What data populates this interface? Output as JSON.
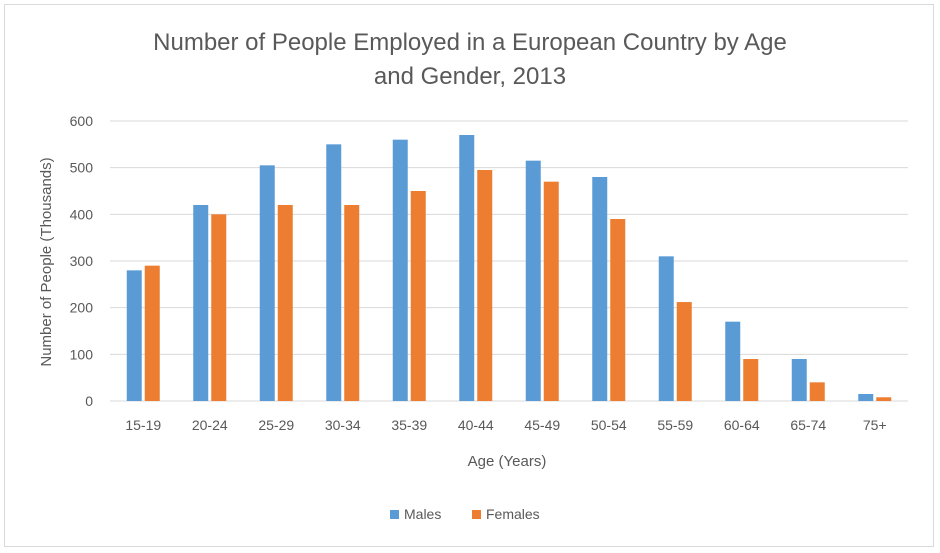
{
  "chart_data": {
    "type": "bar",
    "title_lines": [
      "Number of People Employed in a European Country by Age",
      "and Gender, 2013"
    ],
    "xlabel": "Age (Years)",
    "ylabel": "Number of People (Thousands)",
    "ylim": [
      0,
      600
    ],
    "yticks": [
      0,
      100,
      200,
      300,
      400,
      500,
      600
    ],
    "ytick_labels": [
      "0",
      "100",
      "200",
      "300",
      "400",
      "500",
      "600"
    ],
    "grid": true,
    "legend_position": "bottom",
    "categories": [
      "15-19",
      "20-24",
      "25-29",
      "30-34",
      "35-39",
      "40-44",
      "45-49",
      "50-54",
      "55-59",
      "60-64",
      "65-74",
      "75+"
    ],
    "series": [
      {
        "name": "Males",
        "color": "#5b9bd5",
        "values": [
          280,
          420,
          505,
          550,
          560,
          570,
          515,
          480,
          310,
          170,
          90,
          15
        ]
      },
      {
        "name": "Females",
        "color": "#ed7d31",
        "values": [
          290,
          400,
          420,
          420,
          450,
          495,
          470,
          390,
          212,
          90,
          40,
          8
        ]
      }
    ]
  }
}
